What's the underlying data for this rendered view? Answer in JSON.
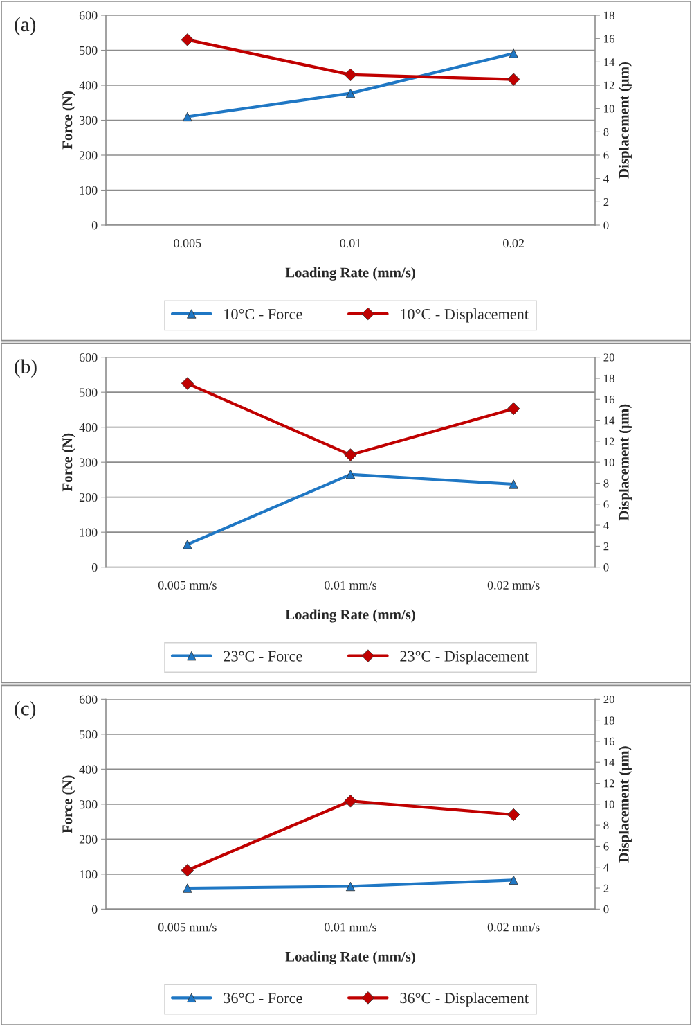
{
  "chart_data": [
    {
      "type": "line",
      "annotations": [
        "(a)"
      ],
      "xlabel": "Loading Rate (mm/s)",
      "ylabel": "Force (N)",
      "y2label": "Displacement (µm)",
      "categories": [
        "0.005",
        "0.01",
        "0.02"
      ],
      "ylim": [
        0,
        600
      ],
      "yticks": [
        0,
        100,
        200,
        300,
        400,
        500,
        600
      ],
      "y2lim": [
        0,
        18
      ],
      "y2ticks": [
        0,
        2,
        4,
        6,
        8,
        10,
        12,
        14,
        16,
        18
      ],
      "grid": "y",
      "legend": "bottom",
      "series": [
        {
          "name": "10°C - Force",
          "color": "#1f77c4",
          "marker": "triangle",
          "values": [
            310,
            377,
            491
          ]
        },
        {
          "name": "10°C - Displacement",
          "color": "#c00000",
          "marker": "diamond",
          "axis": "y2",
          "values": [
            15.9,
            12.9,
            12.5
          ]
        }
      ]
    },
    {
      "type": "line",
      "annotations": [
        "(b)"
      ],
      "xlabel": "Loading Rate (mm/s)",
      "ylabel": "Force (N)",
      "y2label": "Displacement (µm)",
      "categories": [
        "0.005 mm/s",
        "0.01 mm/s",
        "0.02 mm/s"
      ],
      "ylim": [
        0,
        600
      ],
      "yticks": [
        0,
        100,
        200,
        300,
        400,
        500,
        600
      ],
      "y2lim": [
        0,
        20
      ],
      "y2ticks": [
        0,
        2,
        4,
        6,
        8,
        10,
        12,
        14,
        16,
        18,
        20
      ],
      "grid": "y",
      "legend": "bottom",
      "series": [
        {
          "name": "23°C - Force",
          "color": "#1f77c4",
          "marker": "triangle",
          "values": [
            65,
            265,
            237
          ]
        },
        {
          "name": "23°C - Displacement",
          "color": "#c00000",
          "marker": "diamond",
          "axis": "y2",
          "values": [
            17.5,
            10.7,
            15.1
          ]
        }
      ]
    },
    {
      "type": "line",
      "annotations": [
        "(c)"
      ],
      "xlabel": "Loading Rate (mm/s)",
      "ylabel": "Force (N)",
      "y2label": "Displacement (µm)",
      "categories": [
        "0.005 mm/s",
        "0.01 mm/s",
        "0.02 mm/s"
      ],
      "ylim": [
        0,
        600
      ],
      "yticks": [
        0,
        100,
        200,
        300,
        400,
        500,
        600
      ],
      "y2lim": [
        0,
        20
      ],
      "y2ticks": [
        0,
        2,
        4,
        6,
        8,
        10,
        12,
        14,
        16,
        18,
        20
      ],
      "grid": "y",
      "legend": "bottom",
      "series": [
        {
          "name": "36°C - Force",
          "color": "#1f77c4",
          "marker": "triangle",
          "values": [
            60,
            65,
            83
          ]
        },
        {
          "name": "36°C - Displacement",
          "color": "#c00000",
          "marker": "diamond",
          "axis": "y2",
          "values": [
            3.7,
            10.3,
            9.0
          ]
        }
      ]
    }
  ]
}
